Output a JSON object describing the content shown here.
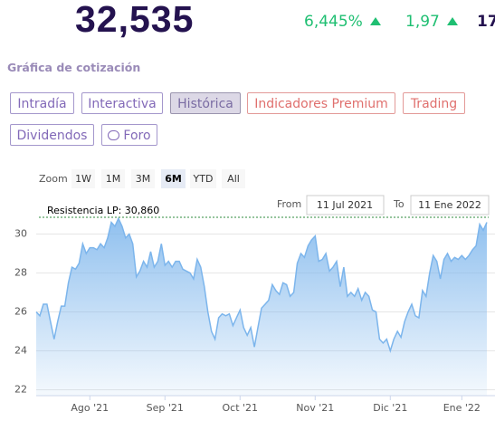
{
  "header": {
    "price": "32,535",
    "change_pct": "6,445%",
    "change_abs": "1,97",
    "extra": "17",
    "section_title": "Gráfica de cotización"
  },
  "tabs": [
    {
      "label": "Intradía",
      "style": "normal"
    },
    {
      "label": "Interactiva",
      "style": "normal"
    },
    {
      "label": "Histórica",
      "style": "selected"
    },
    {
      "label": "Indicadores Premium",
      "style": "premium"
    },
    {
      "label": "Trading",
      "style": "premium"
    },
    {
      "label": "Dividendos",
      "style": "normal"
    },
    {
      "label": "Foro",
      "style": "normal"
    }
  ],
  "chart_data": {
    "type": "area",
    "color": "#7cb5ec",
    "zoom": {
      "label": "Zoom",
      "buttons": [
        "1W",
        "1M",
        "3M",
        "6M",
        "YTD",
        "All"
      ],
      "selected": "6M"
    },
    "range": {
      "from_label": "From",
      "from": "11 Jul 2021",
      "to_label": "To",
      "to": "11 Ene 2022"
    },
    "annotations": [
      {
        "label": "Resistencia LP: 30,860",
        "value": 30.86,
        "color": "#2e8b3e"
      }
    ],
    "values": [
      26.0,
      25.8,
      26.4,
      26.4,
      25.5,
      24.6,
      25.5,
      26.3,
      26.3,
      27.5,
      28.3,
      28.2,
      28.5,
      29.5,
      29.0,
      29.3,
      29.3,
      29.2,
      29.5,
      29.3,
      29.8,
      30.6,
      30.4,
      30.8,
      30.4,
      29.8,
      30.0,
      29.5,
      27.8,
      28.1,
      28.6,
      28.3,
      29.1,
      28.3,
      28.6,
      29.5,
      28.4,
      28.6,
      28.3,
      28.6,
      28.6,
      28.2,
      28.1,
      28.0,
      27.7,
      28.7,
      28.3,
      27.3,
      26.0,
      25.0,
      24.6,
      25.7,
      25.9,
      25.8,
      25.9,
      25.3,
      25.7,
      26.1,
      25.2,
      24.8,
      25.2,
      24.2,
      25.2,
      26.2,
      26.4,
      26.6,
      27.4,
      27.1,
      26.9,
      27.5,
      27.4,
      26.8,
      27.0,
      28.5,
      29.0,
      28.8,
      29.4,
      29.7,
      29.9,
      28.6,
      28.7,
      29.0,
      28.1,
      28.3,
      28.6,
      27.3,
      28.3,
      26.8,
      27.0,
      26.8,
      27.2,
      26.6,
      27.0,
      26.8,
      26.1,
      26.0,
      24.6,
      24.4,
      24.6,
      24.0,
      24.6,
      25.0,
      24.7,
      25.5,
      26.0,
      26.4,
      25.8,
      25.7,
      27.1,
      26.8,
      28.0,
      28.9,
      28.6,
      27.7,
      28.7,
      29.0,
      28.6,
      28.8,
      28.7,
      28.9,
      28.7,
      28.9,
      29.2,
      29.4,
      30.5,
      30.2,
      30.6
    ],
    "xlim": [
      0,
      126
    ],
    "xticks": [
      {
        "value": 15,
        "label": "Ago '21"
      },
      {
        "value": 36,
        "label": "Sep '21"
      },
      {
        "value": 57,
        "label": "Oct '21"
      },
      {
        "value": 78,
        "label": "Nov '21"
      },
      {
        "value": 99,
        "label": "Dic '21"
      },
      {
        "value": 119,
        "label": "Ene '22"
      }
    ],
    "ylim": [
      21.7,
      31.0
    ],
    "yticks": [
      22,
      24,
      26,
      28,
      30
    ],
    "grid": true
  }
}
